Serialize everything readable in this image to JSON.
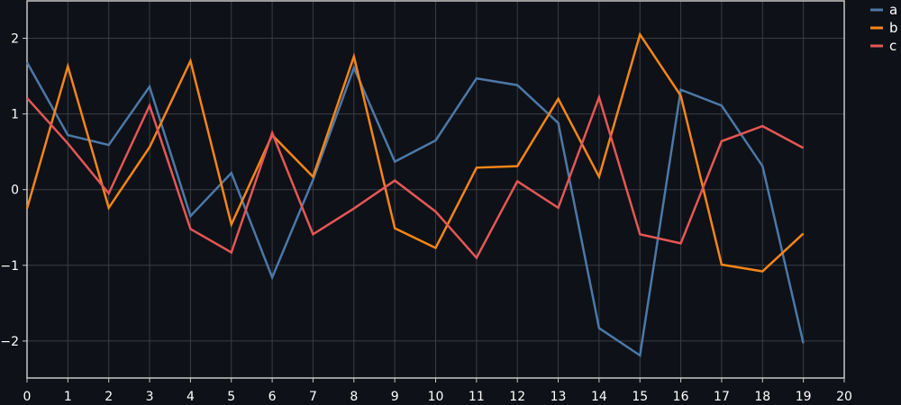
{
  "chart_data": {
    "type": "line",
    "title": "",
    "xlabel": "",
    "ylabel": "",
    "x": [
      0,
      1,
      2,
      3,
      4,
      5,
      6,
      7,
      8,
      9,
      10,
      11,
      12,
      13,
      14,
      15,
      16,
      17,
      18,
      19
    ],
    "xlim": [
      0,
      20
    ],
    "ylim": [
      -2.5,
      2.5
    ],
    "x_ticks": [
      0,
      1,
      2,
      3,
      4,
      5,
      6,
      7,
      8,
      9,
      10,
      11,
      12,
      13,
      14,
      15,
      16,
      17,
      18,
      19,
      20
    ],
    "y_ticks": [
      -2,
      -1,
      0,
      1,
      2
    ],
    "y_tick_labels": [
      "−2",
      "−1",
      "0",
      "1",
      "2"
    ],
    "grid": true,
    "legend_position": "top-right-outside",
    "series": [
      {
        "name": "a",
        "color": "#4c78a8",
        "values": [
          1.68,
          0.72,
          0.59,
          1.36,
          -0.35,
          0.22,
          -1.16,
          0.13,
          1.61,
          0.37,
          0.65,
          1.47,
          1.38,
          0.88,
          -1.83,
          -2.19,
          1.32,
          1.11,
          0.31,
          -2.03
        ]
      },
      {
        "name": "b",
        "color": "#f58518",
        "values": [
          -0.25,
          1.63,
          -0.24,
          0.56,
          1.7,
          -0.46,
          0.72,
          0.17,
          1.76,
          -0.51,
          -0.77,
          0.29,
          0.31,
          1.2,
          0.17,
          2.05,
          1.24,
          -0.99,
          -1.08,
          -0.58
        ]
      },
      {
        "name": "c",
        "color": "#e45756",
        "values": [
          1.21,
          0.61,
          -0.05,
          1.11,
          -0.52,
          -0.83,
          0.75,
          -0.59,
          -0.25,
          0.12,
          -0.29,
          -0.9,
          0.11,
          -0.24,
          1.22,
          -0.59,
          -0.71,
          0.64,
          0.84,
          0.55
        ]
      }
    ]
  },
  "theme": {
    "background": "#0e1117",
    "grid_color": "#3a3d44",
    "axis_color": "#c8c8c8",
    "text_color": "#ffffff"
  }
}
